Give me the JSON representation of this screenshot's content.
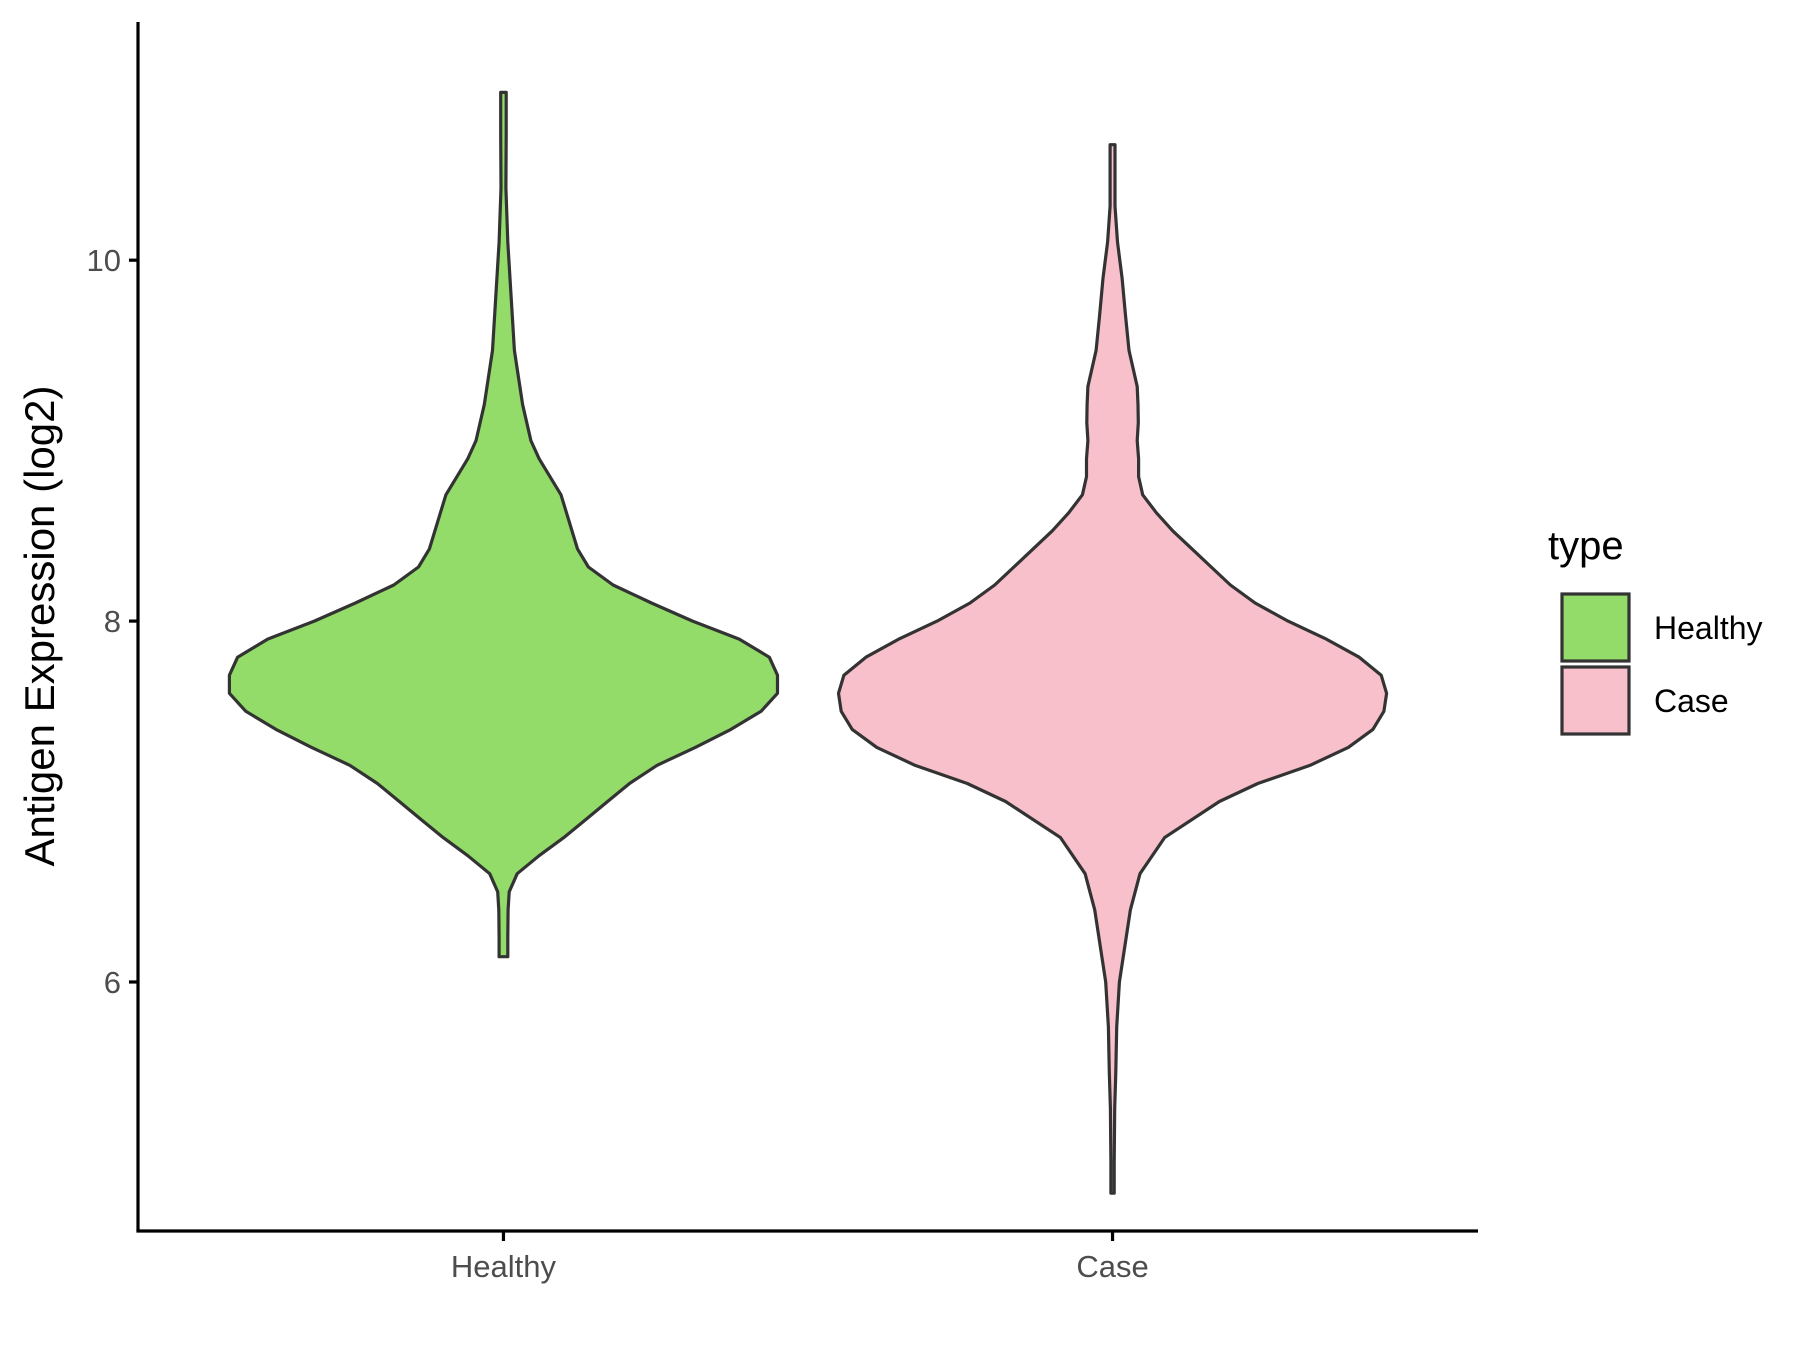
{
  "chart_data": {
    "type": "violin",
    "ylabel": "Antigen Expression (log2)",
    "xlabel": "",
    "categories": [
      "Healthy",
      "Case"
    ],
    "ylim": [
      4.62,
      11.32
    ],
    "yticks": [
      6,
      8,
      10
    ],
    "grid": false,
    "legend": {
      "title": "type",
      "position": "right",
      "entries": [
        {
          "label": "Healthy",
          "color": "#93DC6A"
        },
        {
          "label": "Case",
          "color": "#F7C0CB"
        }
      ]
    },
    "series": [
      {
        "category": "Healthy",
        "color": "#93DC6A",
        "y_range": [
          6.14,
          10.93
        ],
        "density_profile": [
          [
            6.14,
            0.016
          ],
          [
            6.25,
            0.016
          ],
          [
            6.4,
            0.017
          ],
          [
            6.5,
            0.021
          ],
          [
            6.6,
            0.05
          ],
          [
            6.7,
            0.13
          ],
          [
            6.8,
            0.22
          ],
          [
            6.9,
            0.3
          ],
          [
            7.0,
            0.38
          ],
          [
            7.1,
            0.46
          ],
          [
            7.2,
            0.56
          ],
          [
            7.3,
            0.7
          ],
          [
            7.4,
            0.83
          ],
          [
            7.5,
            0.94
          ],
          [
            7.6,
            1.0
          ],
          [
            7.7,
            1.0
          ],
          [
            7.8,
            0.97
          ],
          [
            7.9,
            0.86
          ],
          [
            8.0,
            0.69
          ],
          [
            8.1,
            0.54
          ],
          [
            8.2,
            0.4
          ],
          [
            8.3,
            0.31
          ],
          [
            8.4,
            0.27
          ],
          [
            8.5,
            0.25
          ],
          [
            8.6,
            0.23
          ],
          [
            8.7,
            0.21
          ],
          [
            8.8,
            0.17
          ],
          [
            8.9,
            0.13
          ],
          [
            9.0,
            0.1
          ],
          [
            9.2,
            0.07
          ],
          [
            9.5,
            0.04
          ],
          [
            9.8,
            0.028
          ],
          [
            10.1,
            0.016
          ],
          [
            10.4,
            0.009
          ],
          [
            10.7,
            0.01
          ],
          [
            10.93,
            0.01
          ]
        ]
      },
      {
        "category": "Case",
        "color": "#F7C0CB",
        "y_range": [
          4.83,
          10.64
        ],
        "density_profile": [
          [
            4.83,
            0.006
          ],
          [
            5.0,
            0.006
          ],
          [
            5.3,
            0.008
          ],
          [
            5.5,
            0.012
          ],
          [
            5.75,
            0.015
          ],
          [
            6.0,
            0.025
          ],
          [
            6.2,
            0.045
          ],
          [
            6.4,
            0.065
          ],
          [
            6.6,
            0.1
          ],
          [
            6.8,
            0.19
          ],
          [
            7.0,
            0.39
          ],
          [
            7.1,
            0.53
          ],
          [
            7.2,
            0.72
          ],
          [
            7.3,
            0.86
          ],
          [
            7.4,
            0.95
          ],
          [
            7.5,
            0.99
          ],
          [
            7.6,
            1.0
          ],
          [
            7.7,
            0.98
          ],
          [
            7.8,
            0.9
          ],
          [
            7.9,
            0.78
          ],
          [
            8.0,
            0.64
          ],
          [
            8.1,
            0.52
          ],
          [
            8.2,
            0.43
          ],
          [
            8.3,
            0.36
          ],
          [
            8.4,
            0.29
          ],
          [
            8.5,
            0.22
          ],
          [
            8.6,
            0.16
          ],
          [
            8.7,
            0.11
          ],
          [
            8.8,
            0.095
          ],
          [
            8.9,
            0.095
          ],
          [
            9.0,
            0.09
          ],
          [
            9.1,
            0.094
          ],
          [
            9.2,
            0.093
          ],
          [
            9.3,
            0.09
          ],
          [
            9.5,
            0.06
          ],
          [
            9.7,
            0.047
          ],
          [
            9.9,
            0.035
          ],
          [
            10.1,
            0.018
          ],
          [
            10.3,
            0.009
          ],
          [
            10.64,
            0.009
          ]
        ]
      }
    ]
  }
}
